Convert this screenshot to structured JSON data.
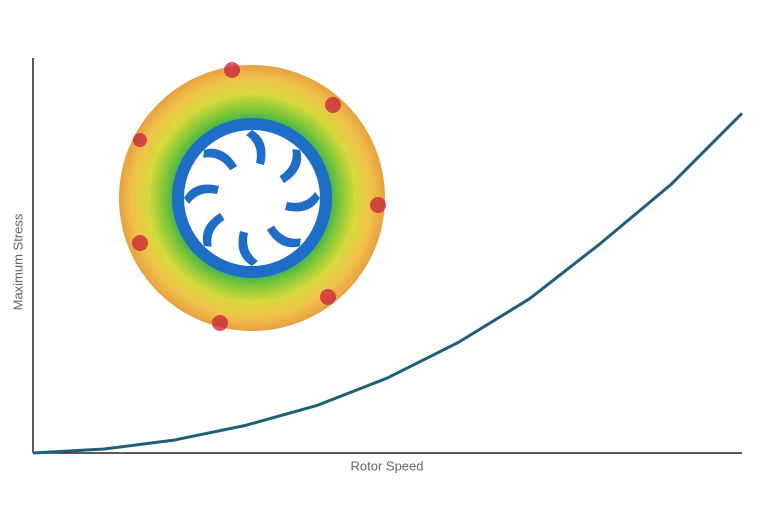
{
  "chart_data": {
    "type": "line",
    "x_label": "Rotor Speed",
    "y_label": "Maximum Stress",
    "x": [
      0,
      10,
      20,
      30,
      40,
      50,
      60,
      70,
      80,
      90,
      100
    ],
    "series": [
      {
        "color": "#1f5f7a",
        "values": [
          0,
          1,
          3.3,
          7,
          12,
          19,
          28,
          39,
          53,
          68,
          86
        ]
      }
    ],
    "xlim": [
      0,
      100
    ],
    "ylim": [
      0,
      100
    ]
  }
}
